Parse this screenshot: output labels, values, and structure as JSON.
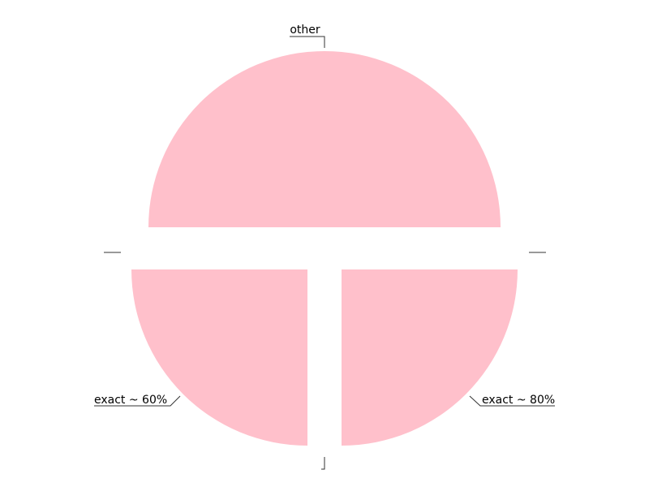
{
  "chart_data": {
    "type": "pie",
    "title": "",
    "color": "#ffc0cb",
    "slices": [
      {
        "label": "other",
        "value": 50
      },
      {
        "label": "exact ~ 80%",
        "value": 25
      },
      {
        "label": "",
        "value": 0
      },
      {
        "label": "exact ~ 60%",
        "value": 25
      },
      {
        "label": "",
        "value": 0
      },
      {
        "label": "",
        "value": 0
      }
    ]
  }
}
